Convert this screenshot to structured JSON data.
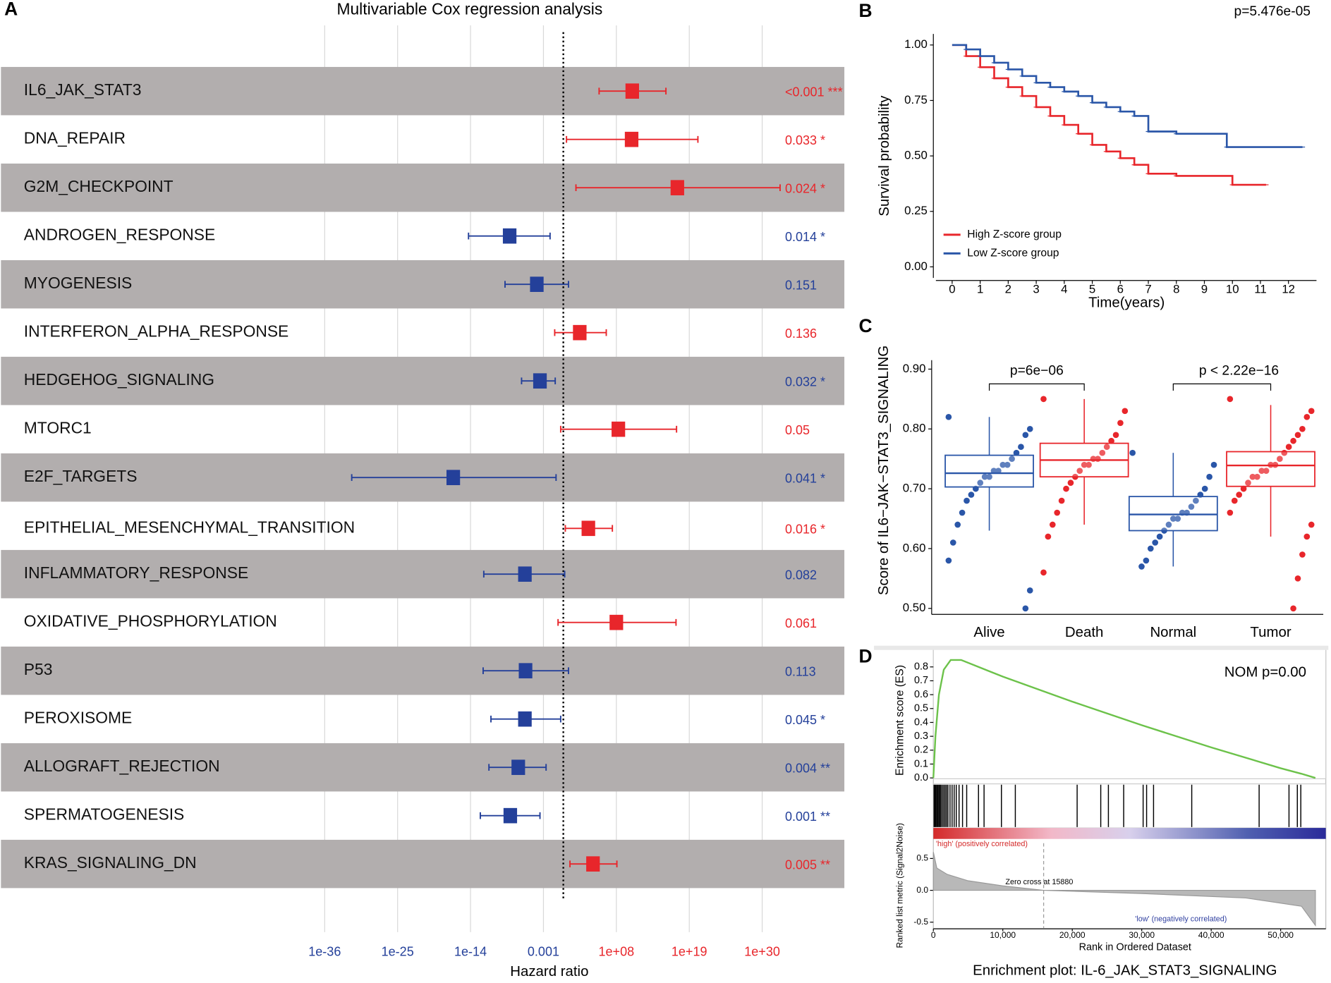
{
  "panel_labels": [
    "A",
    "B",
    "C",
    "D"
  ],
  "chart_data": [
    {
      "type": "forest",
      "title": "Multivariable Cox regression analysis",
      "xlabel": "Hazard ratio",
      "log_scale": true,
      "xlim": [
        1e-42,
        1e+36
      ],
      "xticks": [
        {
          "value": 1e-36,
          "label": "1e-36"
        },
        {
          "value": 1e-25,
          "label": "1e-25"
        },
        {
          "value": 1e-14,
          "label": "1e-14"
        },
        0.001,
        {
          "value": 100000000.0,
          "label": "1e+08"
        },
        {
          "value": 1e+19,
          "label": "1e+19"
        },
        {
          "value": 1e+30,
          "label": "1e+30"
        }
      ],
      "reference_line": 1,
      "grid": true,
      "categories": [
        "IL6_JAK_STAT3",
        "DNA_REPAIR",
        "G2M_CHECKPOINT",
        "ANDROGEN_RESPONSE",
        "MYOGENESIS",
        "INTERFERON_ALPHA_RESPONSE",
        "HEDGEHOG_SIGNALING",
        "MTORC1",
        "E2F_TARGETS",
        "EPITHELIAL_MESENCHYMAL_TRANSITION",
        "INFLAMMATORY_RESPONSE",
        "OXIDATIVE_PHOSPHORYLATION",
        "P53",
        "PEROXISOME",
        "ALLOGRAFT_REJECTION",
        "SPERMATOGENESIS",
        "KRAS_SIGNALING_DN"
      ],
      "values": [
        25000000000.0,
        20000000000.0,
        1.6e+17,
        8e-09,
        0.0001,
        300.0,
        0.0003,
        200000000.0,
        2.5e-17,
        6000.0,
        1.6e-06,
        100000000.0,
        2e-06,
        1.6e-06,
        1.6e-07,
        1e-08,
        30000.0
      ],
      "lower": [
        250000.0,
        3,
        80.0,
        5e-15,
        1.6e-09,
        0.05,
        5e-07,
        0.4,
        1.2e-32,
        2,
        1e-12,
        0.16,
        8e-13,
        1.2e-11,
        6e-12,
        3e-13,
        10
      ],
      "upper": [
        3000000000000000.0,
        2e+20,
        5e+32,
        0.01,
        6,
        3000000.0,
        0.06,
        1.2e+17,
        0.08,
        25000000.0,
        1.6,
        1e+17,
        6,
        0.4,
        0.0025,
        0.0003,
        120000000.0
      ],
      "pvalue_labels": [
        "<0.001 ***",
        "0.033 *",
        "0.024 *",
        "0.014 *",
        "0.151",
        "0.136",
        "0.032 *",
        "0.05",
        "0.041 *",
        "0.016 *",
        "0.082",
        "0.061",
        "0.113",
        "0.045 *",
        "0.004 **",
        "0.001 **",
        "0.005 **"
      ],
      "colors": [
        "#e8262b",
        "#e8262b",
        "#e8262b",
        "#24409a",
        "#24409a",
        "#e8262b",
        "#24409a",
        "#e8262b",
        "#24409a",
        "#e8262b",
        "#24409a",
        "#e8262b",
        "#24409a",
        "#24409a",
        "#24409a",
        "#24409a",
        "#e8262b"
      ]
    },
    {
      "type": "step",
      "annotation": "p=5.476e-05",
      "xlabel": "Time(years)",
      "ylabel": "Survival probability",
      "xlim": [
        -0.58,
        13
      ],
      "ylim": [
        -0.05,
        1.05
      ],
      "xticks": [
        0,
        1,
        2,
        3,
        4,
        5,
        6,
        7,
        8,
        9,
        10,
        11,
        12
      ],
      "yticks": [
        {
          "value": 0,
          "label": "0.00"
        },
        {
          "value": 0.25,
          "label": "0.25"
        },
        {
          "value": 0.5,
          "label": "0.50"
        },
        {
          "value": 0.75,
          "label": "0.75"
        },
        {
          "value": 1,
          "label": "1.00"
        }
      ],
      "series": [
        {
          "name": "High Z-score group",
          "color": "#e8262b",
          "x": [
            0,
            0.5,
            1,
            1.5,
            2,
            2.5,
            3,
            3.5,
            4,
            4.5,
            5,
            5.5,
            6,
            6.5,
            7,
            8,
            9,
            9.8,
            10,
            11.2
          ],
          "values": [
            1,
            0.95,
            0.9,
            0.85,
            0.81,
            0.77,
            0.72,
            0.68,
            0.64,
            0.6,
            0.55,
            0.52,
            0.49,
            0.46,
            0.42,
            0.41,
            0.41,
            0.41,
            0.37,
            0.37
          ]
        },
        {
          "name": "Low Z-score group",
          "color": "#2a56a8",
          "x": [
            0,
            0.5,
            1,
            1.5,
            2,
            2.5,
            3,
            3.5,
            4,
            4.5,
            5,
            5.5,
            6,
            6.5,
            7,
            8,
            9,
            9.5,
            9.8,
            10,
            12.5
          ],
          "values": [
            1,
            0.98,
            0.95,
            0.92,
            0.89,
            0.86,
            0.83,
            0.81,
            0.79,
            0.77,
            0.74,
            0.72,
            0.7,
            0.68,
            0.61,
            0.6,
            0.6,
            0.6,
            0.54,
            0.54,
            0.54
          ]
        }
      ]
    },
    {
      "type": "box",
      "ylabel": "Score of IL6−JAK−STAT3_SIGNALING",
      "ylim": [
        0.49,
        0.915
      ],
      "yticks": [
        {
          "value": 0.5,
          "label": "0.50"
        },
        {
          "value": 0.6,
          "label": "0.60"
        },
        {
          "value": 0.7,
          "label": "0.70"
        },
        {
          "value": 0.8,
          "label": "0.80"
        },
        {
          "value": 0.9,
          "label": "0.90"
        }
      ],
      "categories": [
        "Alive",
        "Death",
        "Normal",
        "Tumor"
      ],
      "colors": [
        "#2a56a8",
        "#e8262b",
        "#2a56a8",
        "#e8262b"
      ],
      "q1": [
        0.703,
        0.72,
        0.63,
        0.704
      ],
      "median": [
        0.726,
        0.748,
        0.657,
        0.739
      ],
      "q3": [
        0.756,
        0.776,
        0.687,
        0.762
      ],
      "whisker_low": [
        0.63,
        0.64,
        0.57,
        0.62
      ],
      "whisker_high": [
        0.82,
        0.85,
        0.76,
        0.84
      ],
      "points": [
        [
          0.82,
          0.8,
          0.79,
          0.77,
          0.76,
          0.75,
          0.74,
          0.74,
          0.73,
          0.73,
          0.72,
          0.72,
          0.71,
          0.7,
          0.69,
          0.68,
          0.66,
          0.64,
          0.61,
          0.58,
          0.53,
          0.5
        ],
        [
          0.85,
          0.83,
          0.81,
          0.79,
          0.78,
          0.77,
          0.76,
          0.75,
          0.75,
          0.74,
          0.74,
          0.73,
          0.72,
          0.71,
          0.7,
          0.68,
          0.66,
          0.64,
          0.62,
          0.56
        ],
        [
          0.76,
          0.74,
          0.72,
          0.7,
          0.69,
          0.68,
          0.67,
          0.66,
          0.66,
          0.65,
          0.65,
          0.64,
          0.63,
          0.62,
          0.61,
          0.6,
          0.58,
          0.57
        ],
        [
          0.85,
          0.83,
          0.82,
          0.8,
          0.79,
          0.78,
          0.77,
          0.76,
          0.75,
          0.74,
          0.74,
          0.73,
          0.73,
          0.72,
          0.72,
          0.71,
          0.7,
          0.69,
          0.68,
          0.66,
          0.64,
          0.62,
          0.59,
          0.55,
          0.5
        ]
      ],
      "annotations": [
        "p=6e−06",
        "p < 2.22e−16"
      ]
    },
    {
      "type": "gsea",
      "title": "Enrichment plot: IL-6_JAK_STAT3_SIGNALING",
      "annotation": "NOM p=0.00",
      "ylabel": "Enrichment score (ES)",
      "metric_ylabel": "Ranked list metric (Signal2Noise)",
      "xlabel": "Rank in Ordered Dataset",
      "xlim": [
        0,
        56500
      ],
      "ylim": [
        0,
        0.916
      ],
      "metric_ylim": [
        -0.59,
        0.74
      ],
      "xticks": [
        0,
        {
          "value": 10000,
          "label": "10,000"
        },
        {
          "value": 20000,
          "label": "20,000"
        },
        {
          "value": 30000,
          "label": "30,000"
        },
        {
          "value": 40000,
          "label": "40,000"
        },
        {
          "value": 50000,
          "label": "50,000"
        }
      ],
      "yticks": [
        {
          "value": 0,
          "label": "0.0"
        },
        0.1,
        0.2,
        0.3,
        0.4,
        0.5,
        0.6,
        0.7,
        0.8
      ],
      "metric_yticks": [
        0.5,
        {
          "value": 0,
          "label": "0.0"
        },
        -0.5
      ],
      "es_color": "#6cc24a",
      "x": [
        0,
        300,
        800,
        1500,
        2500,
        4000,
        10000,
        20000,
        30000,
        40000,
        50000,
        53000,
        55000
      ],
      "values": [
        0,
        0.3,
        0.6,
        0.78,
        0.85,
        0.85,
        0.73,
        0.55,
        0.38,
        0.22,
        0.07,
        0.03,
        0
      ],
      "hits": [
        100,
        200,
        350,
        500,
        650,
        800,
        950,
        1100,
        1300,
        1500,
        1700,
        1900,
        2100,
        2400,
        2700,
        3000,
        3300,
        3700,
        4200,
        4800,
        6500,
        7300,
        9800,
        11800,
        20700,
        24100,
        25200,
        27400,
        30200,
        30700,
        31700,
        37200,
        46900,
        51200,
        52400,
        52900
      ],
      "metric_x": [
        0,
        500,
        2000,
        5000,
        10000,
        15880,
        30000,
        45000,
        53000,
        55000
      ],
      "metric_values": [
        0.6,
        0.35,
        0.25,
        0.15,
        0.07,
        0,
        -0.05,
        -0.12,
        -0.25,
        -0.55
      ],
      "zero_cross": 15880,
      "zero_cross_label": "Zero cross at 15880",
      "high_label": "'high' (positively correlated)",
      "low_label": "'low' (negatively correlated)"
    }
  ]
}
